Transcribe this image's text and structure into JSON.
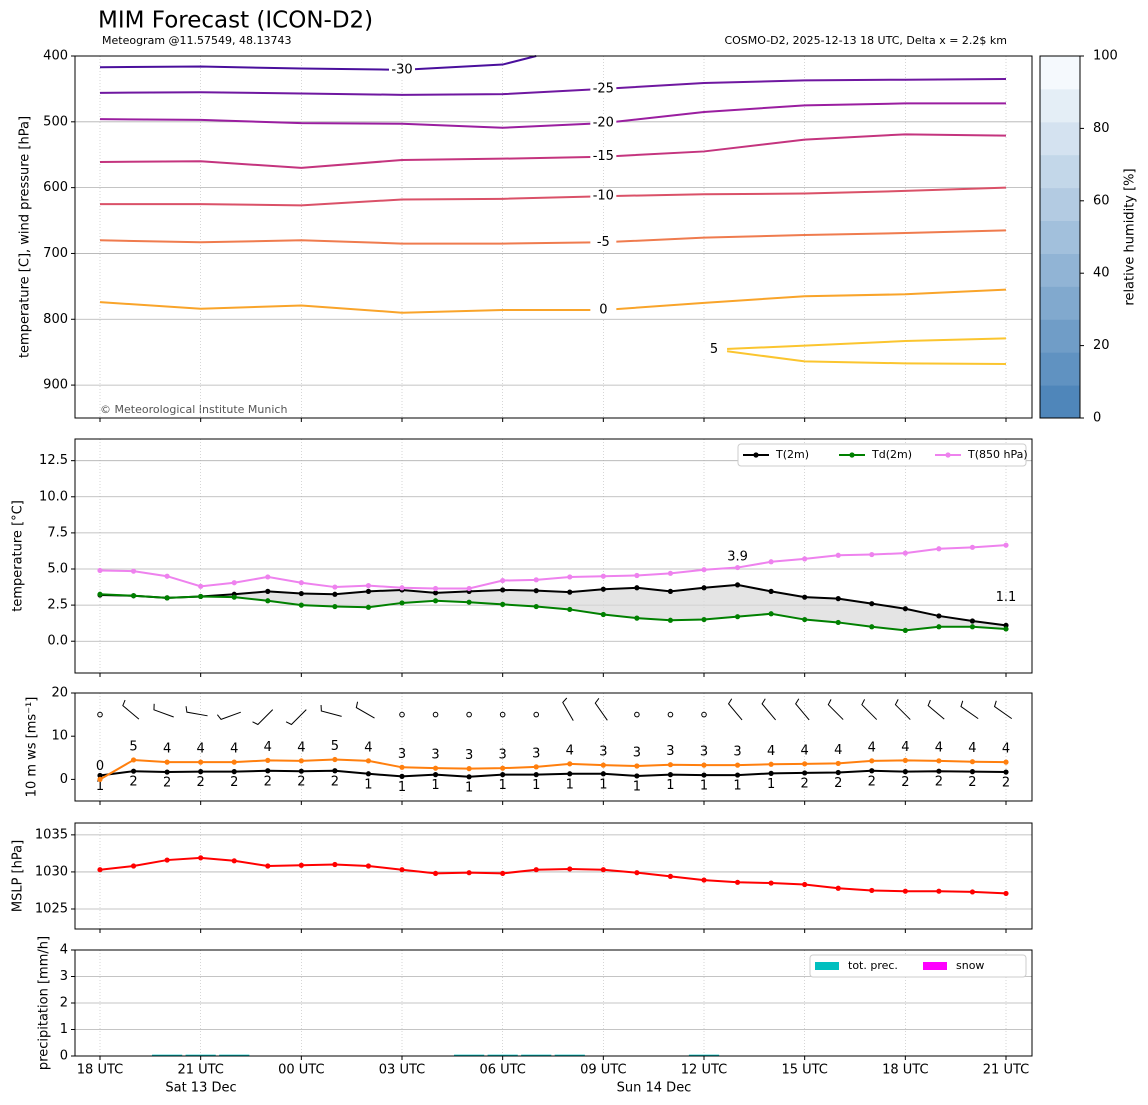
{
  "chart_data": [
    {
      "type": "contour",
      "title": "MIM Forecast (ICON-D2)",
      "subtitle": "Meteogram @11.57549, 48.13743",
      "subtitle_right": "COSMO-D2, 2025-12-13 18 UTC, Delta x = 2.2$ km",
      "ylabel": "temperature [C], wind pressure [hPa]",
      "annotation": "© Meteorological Institute Munich",
      "ylim": [
        950,
        400
      ],
      "yticks": [
        400,
        500,
        600,
        700,
        800,
        900
      ],
      "grid": true,
      "series": [
        {
          "name": "-30",
          "color": "#4a0f9c",
          "x": [
            0,
            3,
            6,
            9,
            12,
            13
          ],
          "values": [
            417,
            416,
            419,
            421,
            413,
            400
          ]
        },
        {
          "name": "-25",
          "color": "#6f17a0",
          "x": [
            0,
            3,
            6,
            9,
            12,
            15,
            18,
            21,
            24,
            27
          ],
          "values": [
            456,
            455,
            457,
            459,
            458,
            450,
            441,
            437,
            436,
            435
          ]
        },
        {
          "name": "-20",
          "color": "#9a1ea0",
          "x": [
            0,
            3,
            6,
            9,
            12,
            15,
            18,
            21,
            24,
            27
          ],
          "values": [
            496,
            497,
            502,
            503,
            509,
            502,
            485,
            475,
            472,
            472
          ]
        },
        {
          "name": "-15",
          "color": "#c4347e",
          "x": [
            0,
            3,
            6,
            9,
            12,
            15,
            18,
            21,
            24,
            27
          ],
          "values": [
            561,
            560,
            570,
            558,
            556,
            553,
            545,
            527,
            519,
            521
          ]
        },
        {
          "name": "-10",
          "color": "#da5168",
          "x": [
            0,
            3,
            6,
            9,
            12,
            15,
            18,
            21,
            24,
            27
          ],
          "values": [
            625,
            625,
            627,
            618,
            617,
            613,
            610,
            609,
            605,
            600
          ]
        },
        {
          "name": "-5",
          "color": "#ef7b4e",
          "x": [
            0,
            3,
            6,
            9,
            12,
            15,
            18,
            21,
            24,
            27
          ],
          "values": [
            680,
            683,
            680,
            685,
            685,
            683,
            676,
            672,
            669,
            665
          ]
        },
        {
          "name": "0",
          "color": "#f9a42a",
          "x": [
            0,
            3,
            6,
            9,
            12,
            15,
            18,
            21,
            24,
            27
          ],
          "values": [
            774,
            784,
            779,
            790,
            786,
            786,
            775,
            765,
            762,
            755
          ]
        },
        {
          "name": "5",
          "color": "#fbc52f",
          "x": [
            27,
            24,
            21,
            18.3,
            21,
            24,
            27
          ],
          "values": [
            829,
            833,
            840,
            846,
            864,
            867,
            868
          ]
        }
      ],
      "colorbar": {
        "label": "relative humidity [%]",
        "lim": [
          0,
          100
        ],
        "ticks": [
          0,
          20,
          40,
          60,
          80,
          100
        ]
      }
    },
    {
      "type": "line",
      "ylabel": "temperature [°C]",
      "ylim": [
        -2.2,
        14.0
      ],
      "yticks": [
        {
          "value": 0,
          "label": "0.0"
        },
        2.5,
        {
          "value": 5,
          "label": "5.0"
        },
        7.5,
        {
          "value": 10,
          "label": "10.0"
        },
        12.5
      ],
      "grid": true,
      "legend": "upper right",
      "series": [
        {
          "name": "T(2m)",
          "color": "#000000",
          "values": [
            3.2,
            3.15,
            3.0,
            3.1,
            3.25,
            3.45,
            3.3,
            3.25,
            3.45,
            3.55,
            3.35,
            3.45,
            3.55,
            3.5,
            3.4,
            3.6,
            3.7,
            3.45,
            3.7,
            3.9,
            3.45,
            3.05,
            2.95,
            2.6,
            2.25,
            1.75,
            1.4,
            1.1
          ]
        },
        {
          "name": "Td(2m)",
          "color": "#008000",
          "values": [
            3.25,
            3.15,
            3.0,
            3.1,
            3.05,
            2.8,
            2.5,
            2.4,
            2.35,
            2.65,
            2.8,
            2.7,
            2.55,
            2.4,
            2.2,
            1.85,
            1.6,
            1.45,
            1.5,
            1.7,
            1.9,
            1.5,
            1.3,
            1.0,
            0.75,
            1.0,
            1.0,
            0.85
          ]
        },
        {
          "name": "T(850 hPa)",
          "color": "#ee82ee",
          "values": [
            4.9,
            4.85,
            4.5,
            3.8,
            4.05,
            4.45,
            4.05,
            3.75,
            3.85,
            3.7,
            3.65,
            3.65,
            4.2,
            4.25,
            4.45,
            4.5,
            4.55,
            4.7,
            4.95,
            5.1,
            5.5,
            5.7,
            5.95,
            6.0,
            6.1,
            6.4,
            6.5,
            6.65
          ]
        }
      ],
      "fill_between": [
        0,
        1
      ],
      "annotations": [
        {
          "text": "3.9",
          "series": 0,
          "index": 19,
          "color": "#ff0000"
        },
        {
          "text": "1.1",
          "series": 0,
          "index": 27,
          "color": "#0000ff"
        }
      ]
    },
    {
      "type": "wind",
      "ylabel": "10 m ws [ms⁻¹]",
      "ylim": [
        -5,
        20
      ],
      "yticks": [
        0,
        10,
        20
      ],
      "series": [
        {
          "color": "#000000",
          "values": [
            0.9,
            1.9,
            1.7,
            1.8,
            1.8,
            2.0,
            1.9,
            2.0,
            1.3,
            0.7,
            1.1,
            0.6,
            1.1,
            1.1,
            1.3,
            1.3,
            0.8,
            1.1,
            1.0,
            1.0,
            1.4,
            1.5,
            1.6,
            2.0,
            1.8,
            1.9,
            1.8,
            1.7
          ],
          "value_labels": [
            "1",
            "2",
            "2",
            "2",
            "2",
            "2",
            "2",
            "2",
            "1",
            "1",
            "1",
            "1",
            "1",
            "1",
            "1",
            "1",
            "1",
            "1",
            "1",
            "1",
            "1",
            "2",
            "2",
            "2",
            "2",
            "2",
            "2",
            "2"
          ]
        },
        {
          "color": "#ff7f0e",
          "values": [
            0.0,
            4.5,
            4.0,
            4.0,
            4.0,
            4.4,
            4.3,
            4.6,
            4.3,
            2.8,
            2.6,
            2.5,
            2.6,
            2.9,
            3.6,
            3.3,
            3.1,
            3.4,
            3.3,
            3.3,
            3.5,
            3.6,
            3.7,
            4.3,
            4.4,
            4.3,
            4.1,
            4.0
          ],
          "value_labels": [
            "0",
            "5",
            "4",
            "4",
            "4",
            "4",
            "4",
            "5",
            "4",
            "3",
            "3",
            "3",
            "3",
            "3",
            "4",
            "3",
            "3",
            "3",
            "3",
            "3",
            "4",
            "4",
            "4",
            "4",
            "4",
            "4",
            "4",
            "4"
          ]
        }
      ],
      "wind_direction": [
        null,
        310,
        290,
        280,
        250,
        225,
        225,
        285,
        300,
        null,
        null,
        null,
        null,
        null,
        330,
        325,
        null,
        null,
        null,
        320,
        320,
        320,
        315,
        315,
        315,
        310,
        305,
        305
      ]
    },
    {
      "type": "line",
      "ylabel": "MSLP [hPa]",
      "ylim": [
        1022.3,
        1036.6
      ],
      "yticks": [
        1025,
        1030,
        1035
      ],
      "grid": true,
      "series": [
        {
          "color": "#ff0000",
          "values": [
            1030.3,
            1030.8,
            1031.6,
            1031.9,
            1031.5,
            1030.8,
            1030.9,
            1031.0,
            1030.8,
            1030.3,
            1029.8,
            1029.9,
            1029.8,
            1030.3,
            1030.4,
            1030.3,
            1029.9,
            1029.4,
            1028.9,
            1028.6,
            1028.5,
            1028.3,
            1027.8,
            1027.5,
            1027.4,
            1027.4,
            1027.3,
            1027.1
          ]
        }
      ]
    },
    {
      "type": "bar",
      "ylabel": "precipitation [mm/h]",
      "ylim": [
        0,
        4
      ],
      "yticks": [
        0,
        1,
        2,
        3,
        4
      ],
      "grid": true,
      "legend": "upper right",
      "categories": [
        "18 UTC",
        null,
        null,
        "21 UTC",
        null,
        null,
        "00 UTC",
        null,
        null,
        "03 UTC",
        null,
        null,
        "06 UTC",
        null,
        null,
        "09 UTC",
        null,
        null,
        "12 UTC",
        null,
        null,
        "15 UTC",
        null,
        null,
        "18 UTC",
        null,
        null,
        "21 UTC"
      ],
      "date_labels": [
        "Sat 13 Dec",
        "Sun 14 Dec"
      ],
      "series": [
        {
          "name": "tot. prec.",
          "color": "#00bfbf",
          "values": [
            0,
            0,
            0.05,
            0.05,
            0.05,
            0,
            0,
            0,
            0,
            0,
            0,
            0.05,
            0.05,
            0.05,
            0.05,
            0,
            0,
            0,
            0.05,
            0,
            0,
            0,
            0,
            0,
            0,
            0,
            0,
            0
          ]
        },
        {
          "name": "snow",
          "color": "#ff00ff",
          "values": [
            0,
            0,
            0,
            0,
            0,
            0,
            0,
            0,
            0,
            0,
            0,
            0,
            0,
            0,
            0,
            0,
            0,
            0,
            0,
            0,
            0,
            0,
            0,
            0,
            0,
            0,
            0,
            0
          ]
        }
      ]
    }
  ]
}
